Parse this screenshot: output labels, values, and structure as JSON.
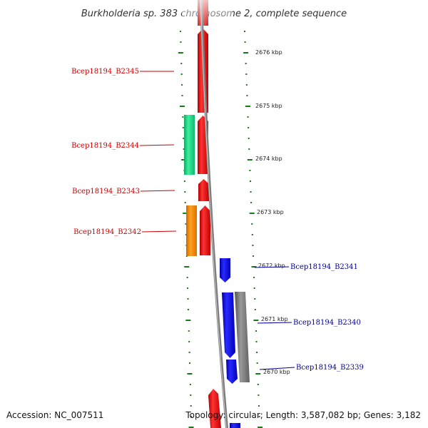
{
  "title": "Burkholderia sp. 383 chromosome 2, complete sequence",
  "footer": {
    "accession": "Accession: NC_007511",
    "topology": "Topology: circular; Length: 3,587,082 bp; Genes: 3,182"
  },
  "colors": {
    "backbone": "#8a8a8a",
    "tick": "#1a7a1a",
    "label_red": "#cc0000",
    "label_blue": "#000099"
  },
  "ticks": [
    {
      "label": "2676 kbp"
    },
    {
      "label": "2675 kbp"
    },
    {
      "label": "2674 kbp"
    },
    {
      "label": "2673 kbp"
    },
    {
      "label": "2672 kbp"
    },
    {
      "label": "2671 kbp"
    },
    {
      "label": "2670 kbp"
    }
  ],
  "genes": [
    {
      "name": "Bcep18194_B2345",
      "color": "#ff0000",
      "strand": "left"
    },
    {
      "name": "Bcep18194_B2344",
      "color": "#ff0000",
      "strand": "left"
    },
    {
      "name": "Bcep18194_B2343",
      "color": "#ff0000",
      "strand": "left"
    },
    {
      "name": "Bcep18194_B2342",
      "color": "#ff0000",
      "strand": "left"
    },
    {
      "name": "Bcep18194_B2341",
      "color": "#0000ff",
      "strand": "right"
    },
    {
      "name": "Bcep18194_B2340",
      "color": "#0000ff",
      "strand": "right"
    },
    {
      "name": "Bcep18194_B2339",
      "color": "#0000ff",
      "strand": "right"
    }
  ],
  "other_features": [
    {
      "type": "cog-green",
      "color": "#22dd88"
    },
    {
      "type": "cog-orange",
      "color": "#ff8c00"
    },
    {
      "type": "cog-gray",
      "color": "#808080"
    }
  ]
}
